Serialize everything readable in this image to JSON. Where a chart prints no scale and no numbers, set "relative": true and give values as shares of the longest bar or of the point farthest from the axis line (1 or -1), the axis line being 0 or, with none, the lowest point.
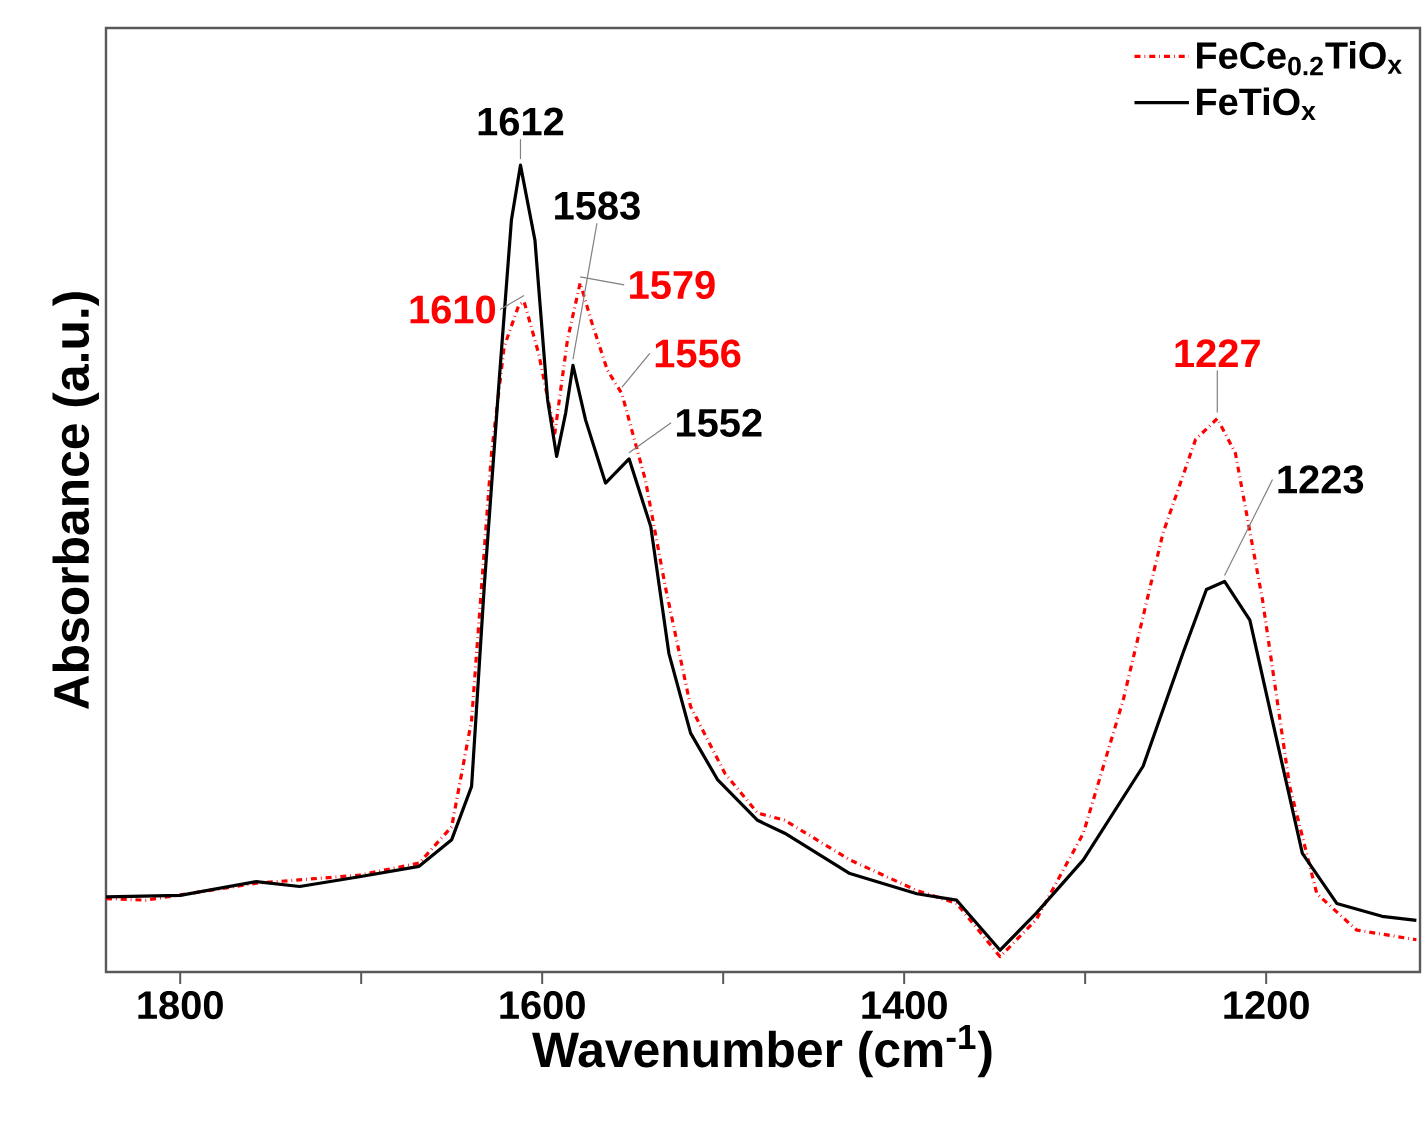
{
  "chart_data": {
    "type": "line",
    "xlabel": "Wavenumber (cm$^{-1}$)",
    "ylabel": "Absorbance (a.u.)",
    "relative": true,
    "tick_labels": "x",
    "legend": "top right",
    "xlim": [
      1841,
      1115
    ],
    "xticks": [
      1800,
      {
        "value": 1700,
        "label": null
      },
      1600,
      {
        "value": 1500,
        "label": null
      },
      1400,
      {
        "value": 1300,
        "label": null
      },
      1200
    ],
    "series": [
      {
        "name": "FeCe$_{0.2}$TiO$_{x}$",
        "color": "#ff0000",
        "line_style": "dashdot",
        "x": [
          1841,
          1819,
          1758,
          1701,
          1668,
          1650,
          1639,
          1628,
          1621,
          1613,
          1610,
          1602,
          1593,
          1586,
          1579,
          1573,
          1564,
          1556,
          1543,
          1532,
          1518,
          1499,
          1481,
          1466,
          1430,
          1393,
          1371,
          1347,
          1327,
          1301,
          1279,
          1257,
          1239,
          1227,
          1217,
          1202,
          1187,
          1172,
          1150,
          1117
        ],
        "values": [
          0.091,
          0.089,
          0.11,
          0.12,
          0.135,
          0.18,
          0.312,
          0.643,
          0.775,
          0.826,
          0.831,
          0.767,
          0.668,
          0.784,
          0.854,
          0.808,
          0.746,
          0.717,
          0.61,
          0.478,
          0.329,
          0.246,
          0.197,
          0.188,
          0.139,
          0.101,
          0.085,
          0.019,
          0.065,
          0.172,
          0.337,
          0.544,
          0.66,
          0.686,
          0.643,
          0.461,
          0.23,
          0.097,
          0.052,
          0.04
        ]
      },
      {
        "name": "FeTiO$_{x}$",
        "color": "#000000",
        "line_style": "solid",
        "x": [
          1841,
          1800,
          1758,
          1734,
          1701,
          1668,
          1650,
          1639,
          1632,
          1624,
          1617,
          1612,
          1604,
          1597,
          1592,
          1587,
          1583,
          1576,
          1565,
          1552,
          1540,
          1530,
          1518,
          1503,
          1481,
          1466,
          1430,
          1393,
          1371,
          1347,
          1327,
          1301,
          1268,
          1246,
          1233,
          1223,
          1209,
          1195,
          1180,
          1161,
          1136,
          1117
        ],
        "values": [
          0.093,
          0.095,
          0.112,
          0.106,
          0.118,
          0.131,
          0.164,
          0.23,
          0.478,
          0.726,
          0.932,
          1.0,
          0.907,
          0.709,
          0.639,
          0.693,
          0.752,
          0.684,
          0.606,
          0.636,
          0.552,
          0.395,
          0.296,
          0.238,
          0.188,
          0.172,
          0.122,
          0.097,
          0.089,
          0.027,
          0.073,
          0.139,
          0.255,
          0.395,
          0.474,
          0.484,
          0.436,
          0.296,
          0.147,
          0.085,
          0.069,
          0.064
        ]
      }
    ],
    "annotations": [
      {
        "text": "1612",
        "x": 1612,
        "y": 1.0
      },
      {
        "text": "1583",
        "x": 1583,
        "y": 0.752
      },
      {
        "text": "1610",
        "x": 1610,
        "y": 0.831
      },
      {
        "text": "1579",
        "x": 1579,
        "y": 0.854
      },
      {
        "text": "1556",
        "x": 1556,
        "y": 0.717
      },
      {
        "text": "1552",
        "x": 1552,
        "y": 0.636
      },
      {
        "text": "1227",
        "x": 1227,
        "y": 0.686
      },
      {
        "text": "1223",
        "x": 1223,
        "y": 0.484
      }
    ]
  }
}
